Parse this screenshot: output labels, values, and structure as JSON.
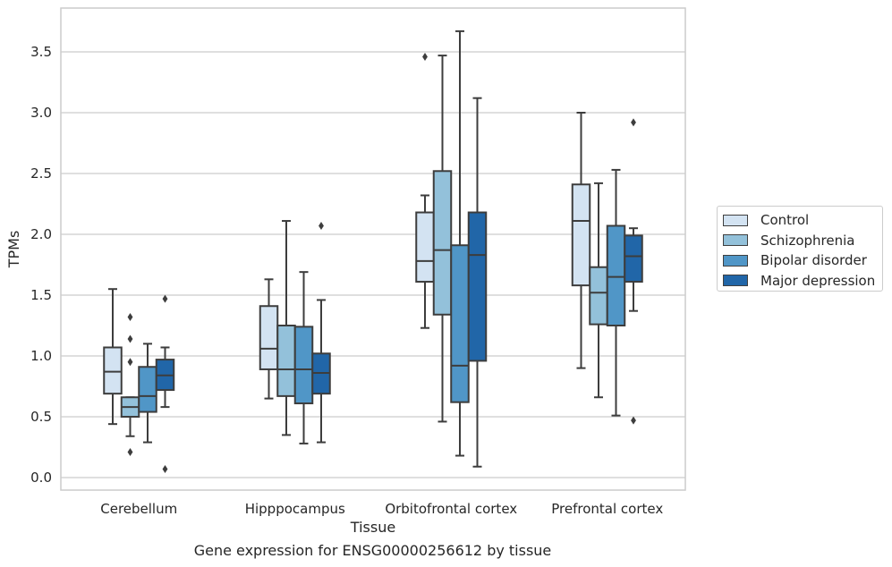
{
  "chart_data": {
    "type": "box",
    "xlabel": "Tissue",
    "ylabel": "TPMs",
    "caption": "Gene expression for ENSG00000256612 by tissue",
    "ylim": [
      -0.1,
      3.8
    ],
    "yticks": [
      "0.0",
      "0.5",
      "1.0",
      "1.5",
      "2.0",
      "2.5",
      "3.0",
      "3.5"
    ],
    "grid": "y",
    "legend_position": "right",
    "categories": [
      "Cerebellum",
      "Hipppocampus",
      "Orbitofrontal cortex",
      "Prefrontal cortex"
    ],
    "series": [
      {
        "name": "Control",
        "color": "#d3e3f2",
        "boxes": [
          {
            "whislo": 0.44,
            "q1": 0.69,
            "med": 0.87,
            "q3": 1.07,
            "whishi": 1.55,
            "fliers": []
          },
          {
            "whislo": 0.65,
            "q1": 0.89,
            "med": 1.06,
            "q3": 1.41,
            "whishi": 1.63,
            "fliers": []
          },
          {
            "whislo": 1.23,
            "q1": 1.61,
            "med": 1.78,
            "q3": 2.18,
            "whishi": 2.32,
            "fliers": [
              3.46
            ]
          },
          {
            "whislo": 0.9,
            "q1": 1.58,
            "med": 2.11,
            "q3": 2.41,
            "whishi": 3.0,
            "fliers": []
          }
        ]
      },
      {
        "name": "Schizophrenia",
        "color": "#93c1da",
        "boxes": [
          {
            "whislo": 0.34,
            "q1": 0.5,
            "med": 0.58,
            "q3": 0.66,
            "whishi": 0.66,
            "fliers": [
              0.21,
              0.95,
              1.14,
              1.32
            ]
          },
          {
            "whislo": 0.35,
            "q1": 0.67,
            "med": 0.89,
            "q3": 1.25,
            "whishi": 2.11,
            "fliers": []
          },
          {
            "whislo": 0.46,
            "q1": 1.34,
            "med": 1.87,
            "q3": 2.52,
            "whishi": 3.47,
            "fliers": []
          },
          {
            "whislo": 0.66,
            "q1": 1.26,
            "med": 1.52,
            "q3": 1.73,
            "whishi": 2.42,
            "fliers": []
          }
        ]
      },
      {
        "name": "Bipolar disorder",
        "color": "#5096c7",
        "boxes": [
          {
            "whislo": 0.29,
            "q1": 0.54,
            "med": 0.67,
            "q3": 0.91,
            "whishi": 1.1,
            "fliers": []
          },
          {
            "whislo": 0.28,
            "q1": 0.61,
            "med": 0.89,
            "q3": 1.24,
            "whishi": 1.69,
            "fliers": []
          },
          {
            "whislo": 0.18,
            "q1": 0.62,
            "med": 0.92,
            "q3": 1.91,
            "whishi": 3.67,
            "fliers": []
          },
          {
            "whislo": 0.51,
            "q1": 1.25,
            "med": 1.65,
            "q3": 2.07,
            "whishi": 2.53,
            "fliers": []
          }
        ]
      },
      {
        "name": "Major depression",
        "color": "#2166a8",
        "boxes": [
          {
            "whislo": 0.58,
            "q1": 0.72,
            "med": 0.84,
            "q3": 0.97,
            "whishi": 1.07,
            "fliers": [
              0.07,
              1.47
            ]
          },
          {
            "whislo": 0.29,
            "q1": 0.69,
            "med": 0.86,
            "q3": 1.02,
            "whishi": 1.46,
            "fliers": [
              2.07
            ]
          },
          {
            "whislo": 0.09,
            "q1": 0.96,
            "med": 1.83,
            "q3": 2.18,
            "whishi": 3.12,
            "fliers": []
          },
          {
            "whislo": 1.37,
            "q1": 1.61,
            "med": 1.82,
            "q3": 1.99,
            "whishi": 2.05,
            "fliers": [
              0.47,
              2.92
            ]
          }
        ]
      }
    ]
  }
}
